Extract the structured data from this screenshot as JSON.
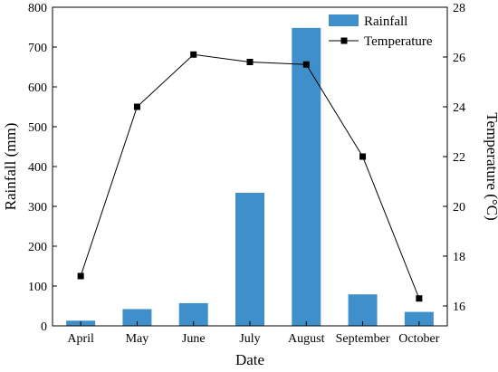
{
  "chart_data": {
    "type": "bar+line",
    "xlabel": "Date",
    "categories": [
      "April",
      "May",
      "June",
      "July",
      "August",
      "September",
      "October"
    ],
    "series": [
      {
        "name": "Rainfall",
        "type": "bar",
        "axis": "left",
        "color": "#3f8fca",
        "values": [
          13,
          42,
          57,
          334,
          748,
          79,
          35
        ]
      },
      {
        "name": "Temperature",
        "type": "line",
        "axis": "right",
        "color": "#000000",
        "marker": "square",
        "values": [
          17.2,
          24.0,
          26.1,
          25.8,
          25.7,
          22.0,
          16.3
        ]
      }
    ],
    "left_axis": {
      "label": "Rainfall (mm)",
      "ylim": [
        0,
        800
      ],
      "ticks": [
        "0",
        "100",
        "200",
        "300",
        "400",
        "500",
        "600",
        "700",
        "800"
      ]
    },
    "right_axis": {
      "label": "Temperature (°C)",
      "ylim": [
        15.2,
        28
      ],
      "ticks": [
        "16",
        "18",
        "20",
        "22",
        "24",
        "26",
        "28"
      ]
    },
    "grid": false,
    "legend": "top-right"
  }
}
